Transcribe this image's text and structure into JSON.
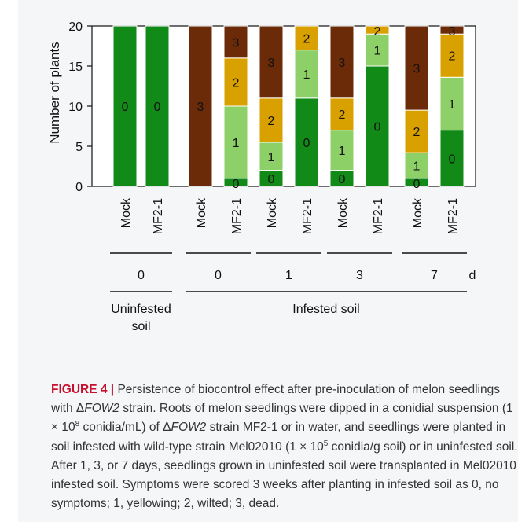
{
  "colors": {
    "score_0": "#128A18",
    "score_1": "#8DD067",
    "score_2": "#D9A100",
    "score_3": "#6B2B08",
    "panel_background": "#F4F6F8"
  },
  "chart_data": {
    "type": "bar",
    "stacked": true,
    "title": "",
    "ylabel": "Number of plants",
    "xlabel": "",
    "ylim": [
      0,
      20
    ],
    "yticks": [
      0,
      5,
      10,
      15,
      20
    ],
    "stack_order": [
      "0",
      "1",
      "2",
      "3"
    ],
    "categories": [
      {
        "label": "Mock",
        "day": "0",
        "soil": "Uninfested soil",
        "counts": {
          "0": 20,
          "1": 0,
          "2": 0,
          "3": 0
        }
      },
      {
        "label": "MF2-1",
        "day": "0",
        "soil": "Uninfested soil",
        "counts": {
          "0": 20,
          "1": 0,
          "2": 0,
          "3": 0
        }
      },
      {
        "label": "Mock",
        "day": "0",
        "soil": "Infested soil",
        "counts": {
          "0": 0,
          "1": 0,
          "2": 0,
          "3": 20
        }
      },
      {
        "label": "MF2-1",
        "day": "0",
        "soil": "Infested soil",
        "counts": {
          "0": 1,
          "1": 9,
          "2": 6,
          "3": 4
        }
      },
      {
        "label": "Mock",
        "day": "1",
        "soil": "Infested soil",
        "counts": {
          "0": 2,
          "1": 3.5,
          "2": 5.5,
          "3": 9
        }
      },
      {
        "label": "MF2-1",
        "day": "1",
        "soil": "Infested soil",
        "counts": {
          "0": 11,
          "1": 6,
          "2": 3,
          "3": 0
        }
      },
      {
        "label": "Mock",
        "day": "3",
        "soil": "Infested soil",
        "counts": {
          "0": 2,
          "1": 5,
          "2": 4,
          "3": 9
        }
      },
      {
        "label": "MF2-1",
        "day": "3",
        "soil": "Infested soil",
        "counts": {
          "0": 15,
          "1": 4,
          "2": 1,
          "3": 0
        }
      },
      {
        "label": "Mock",
        "day": "7",
        "soil": "Infested soil",
        "counts": {
          "0": 1,
          "1": 3.2,
          "2": 5.3,
          "3": 10.5
        }
      },
      {
        "label": "MF2-1",
        "day": "7",
        "soil": "Infested soil",
        "counts": {
          "0": 7,
          "1": 6.6,
          "2": 5.4,
          "3": 1
        }
      }
    ],
    "segment_labels": [
      [
        "0"
      ],
      [
        "0"
      ],
      [
        "3"
      ],
      [
        "0",
        "1",
        "2",
        "3"
      ],
      [
        "0",
        "1",
        "2",
        "3"
      ],
      [
        "0",
        "1",
        "2"
      ],
      [
        "0",
        "1",
        "2",
        "3"
      ],
      [
        "0",
        "1",
        "2"
      ],
      [
        "0",
        "1",
        "2",
        "3"
      ],
      [
        "0",
        "1",
        "2",
        "3"
      ]
    ],
    "day_groups": [
      {
        "label": "0"
      },
      {
        "label": "0"
      },
      {
        "label": "1"
      },
      {
        "label": "3"
      },
      {
        "label": "7"
      }
    ],
    "day_unit": "d",
    "soil_groups": [
      {
        "label": "Uninfested\nsoil"
      },
      {
        "label": "Infested soil"
      }
    ]
  },
  "caption": {
    "label": "FIGURE 4 |",
    "text_1": " Persistence of biocontrol effect after pre-inoculation of melon seedlings with ",
    "delta_1": "Δ",
    "gene_1": "FOW2",
    "text_2": " strain. Roots of melon seedlings were dipped in a conidial suspension (1 × 10",
    "exp_1": "8",
    "text_3": " conidia/mL) of ",
    "delta_2": "Δ",
    "gene_2": "FOW2",
    "text_4": " strain MF2-1 or in water, and seedlings were planted in soil infested with wild-type strain Mel02010 (1 × 10",
    "exp_2": "5",
    "text_5": " conidia/g soil) or in uninfested soil. After 1, 3, or 7 days, seedlings grown in uninfested soil were transplanted in Mel02010 infested soil. Symptoms were scored 3 weeks after planting in infested soil as 0, no symptoms; 1, yellowing; 2, wilted; 3, dead."
  }
}
